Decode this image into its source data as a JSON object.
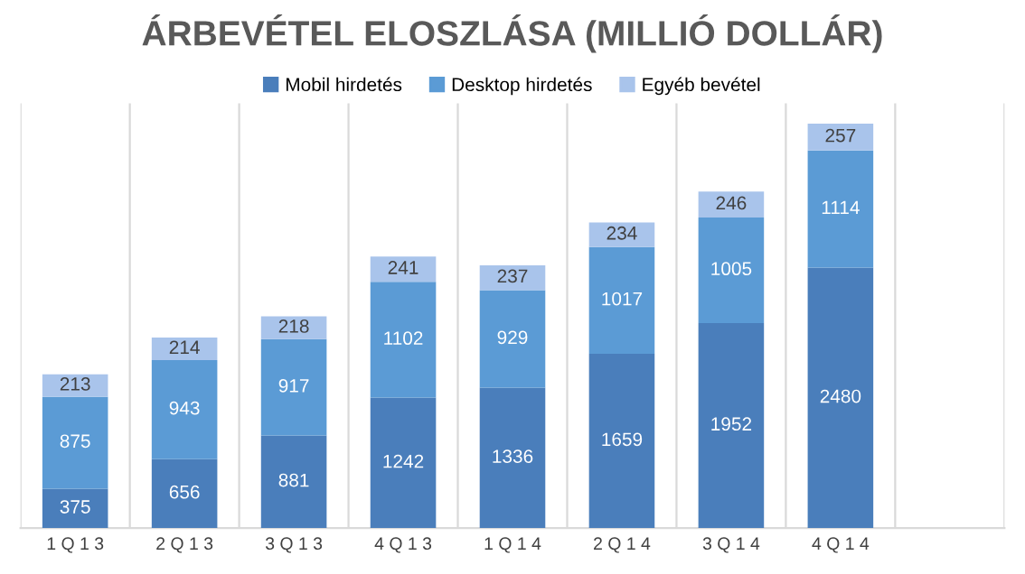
{
  "chart_data": {
    "type": "bar",
    "title": "ÁRBEVÉTEL ELOSZLÁSA (MILLIÓ DOLLÁR)",
    "categories": [
      "1 Q 1 3",
      "2 Q 1 3",
      "3 Q 1 3",
      "4 Q 1 3",
      "1 Q 1 4",
      "2 Q 1 4",
      "3 Q 1 4",
      "4 Q 1 4",
      null
    ],
    "stacked": true,
    "data_labels": true,
    "grid": "x",
    "legend": "top",
    "series": [
      {
        "name": "Mobil hirdetés",
        "color": "#4a7ebb",
        "values": [
          375,
          656,
          881,
          1242,
          1336,
          1659,
          1952,
          2480,
          null
        ]
      },
      {
        "name": "Desktop hirdetés",
        "color": "#5b9bd5",
        "values": [
          875,
          943,
          917,
          1102,
          929,
          1017,
          1005,
          1114,
          null
        ]
      },
      {
        "name": "Egyéb bevétel",
        "color": "#a9c4eb",
        "values": [
          213,
          214,
          218,
          241,
          237,
          234,
          246,
          257,
          null
        ]
      }
    ]
  }
}
